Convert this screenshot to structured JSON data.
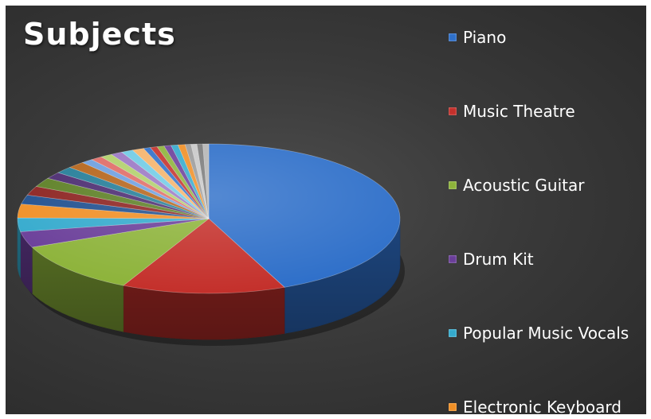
{
  "chart_data": {
    "type": "pie",
    "title": "Subjects",
    "legend_position": "right",
    "style": "3d",
    "background": "#3a3a3a",
    "slices": [
      {
        "label": "Piano",
        "value": 44,
        "color": "#2e6fc9"
      },
      {
        "label": "Music Theatre",
        "value": 14,
        "color": "#c4302b"
      },
      {
        "label": "Acoustic Guitar",
        "value": 11.5,
        "color": "#8db33a"
      },
      {
        "label": "Drum Kit",
        "value": 3.5,
        "color": "#6a3e99"
      },
      {
        "label": "Popular Music Vocals",
        "value": 3,
        "color": "#34aacd"
      },
      {
        "label": "Electronic Keyboard",
        "value": 3,
        "color": "#f08f25"
      },
      {
        "label": "",
        "value": 2,
        "color": "#1f4f8f"
      },
      {
        "label": "",
        "value": 2,
        "color": "#8c2220"
      },
      {
        "label": "",
        "value": 2,
        "color": "#5c7f24"
      },
      {
        "label": "",
        "value": 1.5,
        "color": "#4a2a70"
      },
      {
        "label": "",
        "value": 1.5,
        "color": "#237d98"
      },
      {
        "label": "",
        "value": 1.5,
        "color": "#b5641a"
      },
      {
        "label": "",
        "value": 1,
        "color": "#6d9fe0"
      },
      {
        "label": "",
        "value": 1,
        "color": "#e06b66"
      },
      {
        "label": "",
        "value": 1,
        "color": "#b1d06a"
      },
      {
        "label": "",
        "value": 1,
        "color": "#9a77c4"
      },
      {
        "label": "",
        "value": 1,
        "color": "#6fcbe6"
      },
      {
        "label": "",
        "value": 1,
        "color": "#f5b36a"
      },
      {
        "label": "",
        "value": 0.6,
        "color": "#2e6fc9"
      },
      {
        "label": "",
        "value": 0.6,
        "color": "#c4302b"
      },
      {
        "label": "",
        "value": 0.6,
        "color": "#8db33a"
      },
      {
        "label": "",
        "value": 0.6,
        "color": "#6a3e99"
      },
      {
        "label": "",
        "value": 0.6,
        "color": "#34aacd"
      },
      {
        "label": "",
        "value": 0.6,
        "color": "#f08f25"
      },
      {
        "label": "",
        "value": 0.5,
        "color": "#9a9a9a"
      },
      {
        "label": "",
        "value": 0.5,
        "color": "#c8c8c8"
      },
      {
        "label": "",
        "value": 0.5,
        "color": "#7a7a7a"
      },
      {
        "label": "",
        "value": 0.5,
        "color": "#b5b5b5"
      }
    ]
  }
}
